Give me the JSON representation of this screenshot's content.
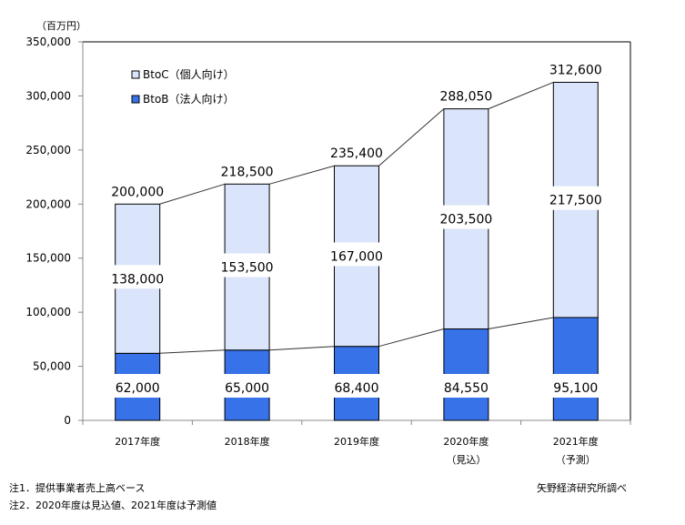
{
  "chart_data": {
    "type": "bar",
    "stacked": true,
    "unit_label": "（百万円）",
    "categories": [
      [
        "2017年度"
      ],
      [
        "2018年度"
      ],
      [
        "2019年度"
      ],
      [
        "2020年度",
        "（見込）"
      ],
      [
        "2021年度",
        "（予測）"
      ]
    ],
    "series": [
      {
        "name": "BtoB（法人向け）",
        "color": "#3772e8",
        "values": [
          62000,
          65000,
          68400,
          84550,
          95100
        ]
      },
      {
        "name": "BtoC（個人向け）",
        "color": "#dae4fa",
        "values": [
          138000,
          153500,
          167000,
          203500,
          217500
        ]
      }
    ],
    "totals": [
      200000,
      218500,
      235400,
      288050,
      312600
    ],
    "ylim": [
      0,
      350000
    ],
    "yticks": [
      0,
      50000,
      100000,
      150000,
      200000,
      250000,
      300000,
      350000
    ],
    "legend_position": "top-left",
    "grid": false
  },
  "notes": {
    "note1": "注1．提供事業者売上高ベース",
    "note2": "注2．2020年度は見込値、2021年度は予測値",
    "source": "矢野経済研究所調べ"
  }
}
